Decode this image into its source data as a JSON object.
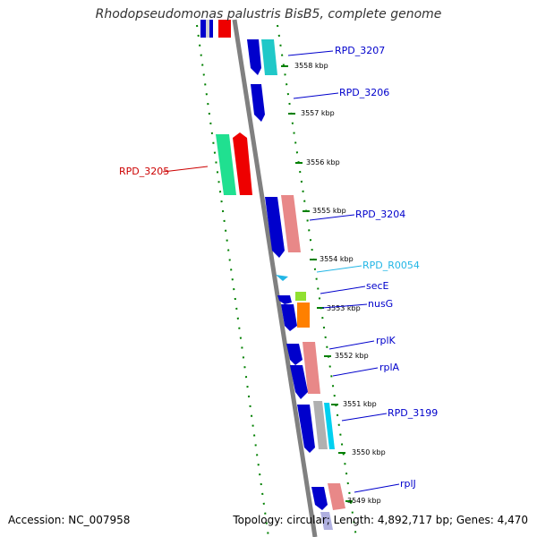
{
  "header": {
    "title": "Rhodopseudomonas palustris BisB5, complete genome"
  },
  "footer": {
    "accession": "Accession: NC_007958",
    "summary": "Topology: circular; Length: 4,892,717 bp; Genes: 4,470"
  },
  "colors": {
    "backbone": "#808080",
    "tick": "#008000",
    "label": "#0000cc",
    "label_highlight": "#cc0000",
    "label_rna": "#22b6e6"
  },
  "ticks": [
    "3558 kbp",
    "3557 kbp",
    "3556 kbp",
    "3555 kbp",
    "3554 kbp",
    "3553 kbp",
    "3552 kbp",
    "3551 kbp",
    "3550 kbp",
    "3549 kbp"
  ],
  "genes": [
    {
      "label": "RPD_3207",
      "color": "#0000cc"
    },
    {
      "label": "RPD_3206",
      "color": "#0000cc"
    },
    {
      "label": "RPD_3205",
      "color": "#cc0000"
    },
    {
      "label": "RPD_3204",
      "color": "#0000cc"
    },
    {
      "label": "RPD_R0054",
      "color": "#22b6e6"
    },
    {
      "label": "secE",
      "color": "#0000cc"
    },
    {
      "label": "nusG",
      "color": "#0000cc"
    },
    {
      "label": "rplK",
      "color": "#0000cc"
    },
    {
      "label": "rplA",
      "color": "#0000cc"
    },
    {
      "label": "RPD_3199",
      "color": "#0000cc"
    },
    {
      "label": "rplJ",
      "color": "#0000cc"
    }
  ]
}
